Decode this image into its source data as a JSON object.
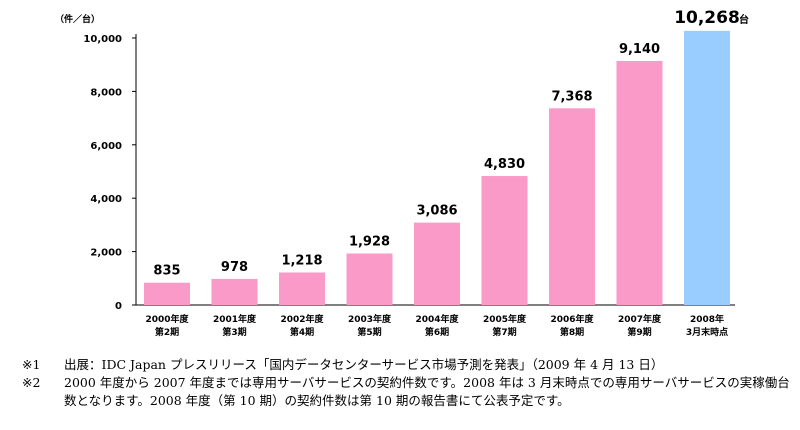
{
  "chart_data": {
    "type": "bar",
    "unit_label": "（件／台）",
    "categories": [
      [
        "2000年度",
        "第2期"
      ],
      [
        "2001年度",
        "第3期"
      ],
      [
        "2002年度",
        "第4期"
      ],
      [
        "2003年度",
        "第5期"
      ],
      [
        "2004年度",
        "第6期"
      ],
      [
        "2005年度",
        "第7期"
      ],
      [
        "2006年度",
        "第8期"
      ],
      [
        "2007年度",
        "第9期"
      ],
      [
        "2008年",
        "3月末時点"
      ]
    ],
    "values": [
      835,
      978,
      1218,
      1928,
      3086,
      4830,
      7368,
      9140,
      10268
    ],
    "value_labels": [
      "835",
      "978",
      "1,218",
      "1,928",
      "3,086",
      "4,830",
      "7,368",
      "9,140",
      "10,268"
    ],
    "last_value_suffix": "台",
    "ylim": [
      0,
      10000
    ],
    "yticks": [
      0,
      2000,
      4000,
      6000,
      8000,
      10000
    ],
    "ytick_labels": [
      "0",
      "2,000",
      "4,000",
      "6,000",
      "8,000",
      "10,000"
    ],
    "grid": false,
    "colors": {
      "bar": "#f99ac8",
      "highlight_bar": "#99ccff"
    }
  },
  "notes": [
    {
      "mark": "※1",
      "text": "出展：IDC Japan プレスリリース「国内データセンターサービス市場予測を発表」（2009 年 4 月 13 日）"
    },
    {
      "mark": "※2",
      "text": "2000 年度から 2007 年度までは専用サーバサービスの契約件数です。2008 年は 3 月末時点での専用サーバサービスの実稼働台数となります。2008 年度（第 10 期）の契約件数は第 10 期の報告書にて公表予定です。"
    }
  ]
}
